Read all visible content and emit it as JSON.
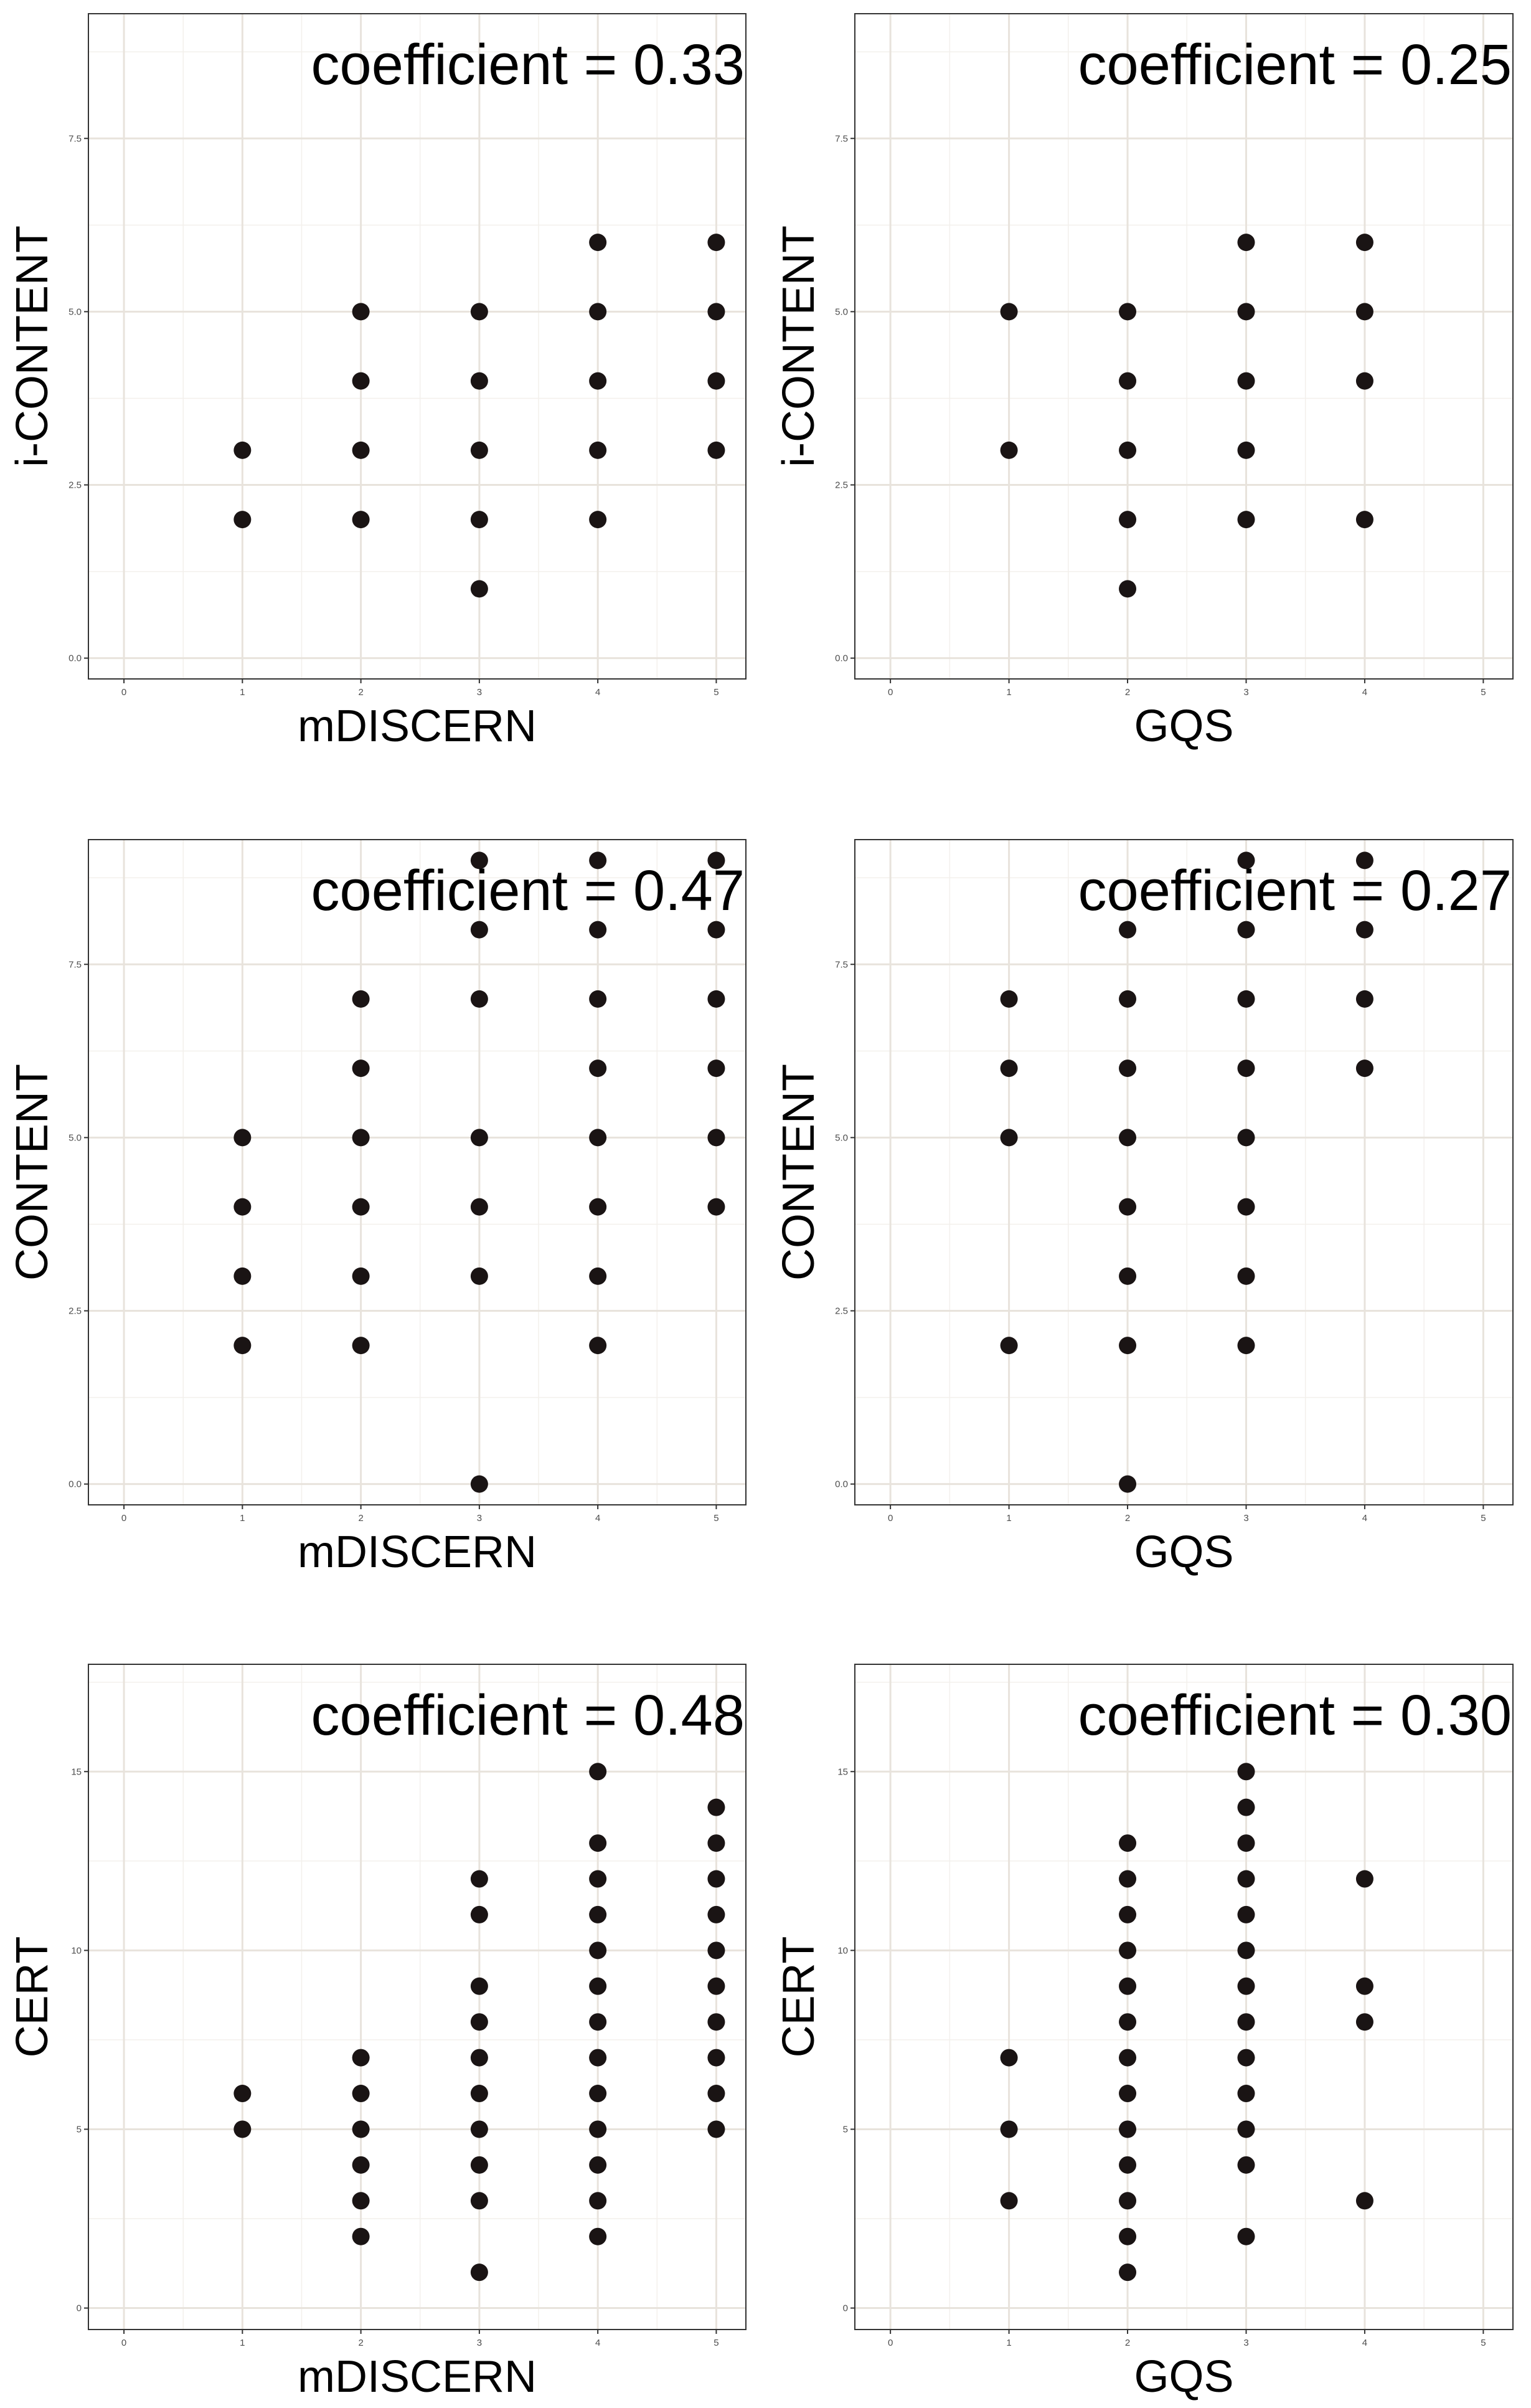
{
  "chart_data": [
    {
      "type": "scatter",
      "xlabel": "mDISCERN",
      "ylabel": "i-CONTENT",
      "annotation": "coefficient = 0.33",
      "xlim": [
        -0.3,
        5.25
      ],
      "ylim": [
        -0.3,
        9.3
      ],
      "x_ticks": [
        0,
        1,
        2,
        3,
        4,
        5
      ],
      "x_tick_labels": [
        "0",
        "1",
        "2",
        "3",
        "4",
        "5"
      ],
      "y_ticks": [
        0,
        2.5,
        5,
        7.5
      ],
      "y_tick_labels": [
        "0.0",
        "2.5",
        "5.0",
        "7.5"
      ],
      "minor_x": [
        0.5,
        1.5,
        2.5,
        3.5,
        4.5
      ],
      "minor_y": [
        1.25,
        3.75,
        6.25,
        8.75
      ],
      "points": [
        [
          1,
          2
        ],
        [
          1,
          3
        ],
        [
          2,
          2
        ],
        [
          2,
          3
        ],
        [
          2,
          4
        ],
        [
          2,
          5
        ],
        [
          3,
          1
        ],
        [
          3,
          2
        ],
        [
          3,
          3
        ],
        [
          3,
          4
        ],
        [
          3,
          5
        ],
        [
          4,
          2
        ],
        [
          4,
          3
        ],
        [
          4,
          4
        ],
        [
          4,
          5
        ],
        [
          4,
          6
        ],
        [
          5,
          3
        ],
        [
          5,
          4
        ],
        [
          5,
          5
        ],
        [
          5,
          6
        ]
      ]
    },
    {
      "type": "scatter",
      "xlabel": "GQS",
      "ylabel": "i-CONTENT",
      "annotation": "coefficient = 0.25",
      "xlim": [
        -0.3,
        5.25
      ],
      "ylim": [
        -0.3,
        9.3
      ],
      "x_ticks": [
        0,
        1,
        2,
        3,
        4,
        5
      ],
      "x_tick_labels": [
        "0",
        "1",
        "2",
        "3",
        "4",
        "5"
      ],
      "y_ticks": [
        0,
        2.5,
        5,
        7.5
      ],
      "y_tick_labels": [
        "0.0",
        "2.5",
        "5.0",
        "7.5"
      ],
      "minor_x": [
        0.5,
        1.5,
        2.5,
        3.5,
        4.5
      ],
      "minor_y": [
        1.25,
        3.75,
        6.25,
        8.75
      ],
      "points": [
        [
          1,
          3
        ],
        [
          1,
          5
        ],
        [
          2,
          1
        ],
        [
          2,
          2
        ],
        [
          2,
          3
        ],
        [
          2,
          4
        ],
        [
          2,
          5
        ],
        [
          3,
          2
        ],
        [
          3,
          3
        ],
        [
          3,
          4
        ],
        [
          3,
          5
        ],
        [
          3,
          6
        ],
        [
          4,
          2
        ],
        [
          4,
          4
        ],
        [
          4,
          5
        ],
        [
          4,
          6
        ]
      ]
    },
    {
      "type": "scatter",
      "xlabel": "mDISCERN",
      "ylabel": "CONTENT",
      "annotation": "coefficient = 0.47",
      "xlim": [
        -0.3,
        5.25
      ],
      "ylim": [
        -0.3,
        9.3
      ],
      "x_ticks": [
        0,
        1,
        2,
        3,
        4,
        5
      ],
      "x_tick_labels": [
        "0",
        "1",
        "2",
        "3",
        "4",
        "5"
      ],
      "y_ticks": [
        0,
        2.5,
        5,
        7.5
      ],
      "y_tick_labels": [
        "0.0",
        "2.5",
        "5.0",
        "7.5"
      ],
      "minor_x": [
        0.5,
        1.5,
        2.5,
        3.5,
        4.5
      ],
      "minor_y": [
        1.25,
        3.75,
        6.25,
        8.75
      ],
      "points": [
        [
          1,
          2
        ],
        [
          1,
          3
        ],
        [
          1,
          4
        ],
        [
          1,
          5
        ],
        [
          2,
          2
        ],
        [
          2,
          3
        ],
        [
          2,
          4
        ],
        [
          2,
          5
        ],
        [
          2,
          6
        ],
        [
          2,
          7
        ],
        [
          3,
          0
        ],
        [
          3,
          3
        ],
        [
          3,
          4
        ],
        [
          3,
          5
        ],
        [
          3,
          7
        ],
        [
          3,
          8
        ],
        [
          3,
          9
        ],
        [
          4,
          2
        ],
        [
          4,
          3
        ],
        [
          4,
          4
        ],
        [
          4,
          5
        ],
        [
          4,
          6
        ],
        [
          4,
          7
        ],
        [
          4,
          8
        ],
        [
          4,
          9
        ],
        [
          5,
          4
        ],
        [
          5,
          5
        ],
        [
          5,
          6
        ],
        [
          5,
          7
        ],
        [
          5,
          8
        ],
        [
          5,
          9
        ]
      ]
    },
    {
      "type": "scatter",
      "xlabel": "GQS",
      "ylabel": "CONTENT",
      "annotation": "coefficient = 0.27",
      "xlim": [
        -0.3,
        5.25
      ],
      "ylim": [
        -0.3,
        9.3
      ],
      "x_ticks": [
        0,
        1,
        2,
        3,
        4,
        5
      ],
      "x_tick_labels": [
        "0",
        "1",
        "2",
        "3",
        "4",
        "5"
      ],
      "y_ticks": [
        0,
        2.5,
        5,
        7.5
      ],
      "y_tick_labels": [
        "0.0",
        "2.5",
        "5.0",
        "7.5"
      ],
      "minor_x": [
        0.5,
        1.5,
        2.5,
        3.5,
        4.5
      ],
      "minor_y": [
        1.25,
        3.75,
        6.25,
        8.75
      ],
      "points": [
        [
          1,
          2
        ],
        [
          1,
          5
        ],
        [
          1,
          6
        ],
        [
          1,
          7
        ],
        [
          2,
          0
        ],
        [
          2,
          2
        ],
        [
          2,
          3
        ],
        [
          2,
          4
        ],
        [
          2,
          5
        ],
        [
          2,
          6
        ],
        [
          2,
          7
        ],
        [
          2,
          8
        ],
        [
          3,
          2
        ],
        [
          3,
          3
        ],
        [
          3,
          4
        ],
        [
          3,
          5
        ],
        [
          3,
          6
        ],
        [
          3,
          7
        ],
        [
          3,
          8
        ],
        [
          3,
          9
        ],
        [
          4,
          6
        ],
        [
          4,
          7
        ],
        [
          4,
          8
        ],
        [
          4,
          9
        ]
      ]
    },
    {
      "type": "scatter",
      "xlabel": "mDISCERN",
      "ylabel": "CERT",
      "annotation": "coefficient = 0.48",
      "xlim": [
        -0.3,
        5.25
      ],
      "ylim": [
        -0.6,
        18
      ],
      "x_ticks": [
        0,
        1,
        2,
        3,
        4,
        5
      ],
      "x_tick_labels": [
        "0",
        "1",
        "2",
        "3",
        "4",
        "5"
      ],
      "y_ticks": [
        0,
        5,
        10,
        15
      ],
      "y_tick_labels": [
        "0",
        "5",
        "10",
        "15"
      ],
      "minor_x": [
        0.5,
        1.5,
        2.5,
        3.5,
        4.5
      ],
      "minor_y": [
        2.5,
        7.5,
        12.5,
        17.5
      ],
      "points": [
        [
          1,
          5
        ],
        [
          1,
          6
        ],
        [
          2,
          2
        ],
        [
          2,
          3
        ],
        [
          2,
          4
        ],
        [
          2,
          5
        ],
        [
          2,
          6
        ],
        [
          2,
          7
        ],
        [
          3,
          1
        ],
        [
          3,
          3
        ],
        [
          3,
          4
        ],
        [
          3,
          5
        ],
        [
          3,
          6
        ],
        [
          3,
          7
        ],
        [
          3,
          8
        ],
        [
          3,
          9
        ],
        [
          3,
          11
        ],
        [
          3,
          12
        ],
        [
          4,
          2
        ],
        [
          4,
          3
        ],
        [
          4,
          4
        ],
        [
          4,
          5
        ],
        [
          4,
          6
        ],
        [
          4,
          7
        ],
        [
          4,
          8
        ],
        [
          4,
          9
        ],
        [
          4,
          10
        ],
        [
          4,
          11
        ],
        [
          4,
          12
        ],
        [
          4,
          13
        ],
        [
          4,
          15
        ],
        [
          5,
          5
        ],
        [
          5,
          6
        ],
        [
          5,
          7
        ],
        [
          5,
          8
        ],
        [
          5,
          9
        ],
        [
          5,
          10
        ],
        [
          5,
          11
        ],
        [
          5,
          12
        ],
        [
          5,
          13
        ],
        [
          5,
          14
        ]
      ]
    },
    {
      "type": "scatter",
      "xlabel": "GQS",
      "ylabel": "CERT",
      "annotation": "coefficient = 0.30",
      "xlim": [
        -0.3,
        5.25
      ],
      "ylim": [
        -0.6,
        18
      ],
      "x_ticks": [
        0,
        1,
        2,
        3,
        4,
        5
      ],
      "x_tick_labels": [
        "0",
        "1",
        "2",
        "3",
        "4",
        "5"
      ],
      "y_ticks": [
        0,
        5,
        10,
        15
      ],
      "y_tick_labels": [
        "0",
        "5",
        "10",
        "15"
      ],
      "minor_x": [
        0.5,
        1.5,
        2.5,
        3.5,
        4.5
      ],
      "minor_y": [
        2.5,
        7.5,
        12.5,
        17.5
      ],
      "points": [
        [
          1,
          3
        ],
        [
          1,
          5
        ],
        [
          1,
          7
        ],
        [
          2,
          1
        ],
        [
          2,
          2
        ],
        [
          2,
          3
        ],
        [
          2,
          4
        ],
        [
          2,
          5
        ],
        [
          2,
          6
        ],
        [
          2,
          7
        ],
        [
          2,
          8
        ],
        [
          2,
          9
        ],
        [
          2,
          10
        ],
        [
          2,
          11
        ],
        [
          2,
          12
        ],
        [
          2,
          13
        ],
        [
          3,
          2
        ],
        [
          3,
          4
        ],
        [
          3,
          5
        ],
        [
          3,
          6
        ],
        [
          3,
          7
        ],
        [
          3,
          8
        ],
        [
          3,
          9
        ],
        [
          3,
          10
        ],
        [
          3,
          11
        ],
        [
          3,
          12
        ],
        [
          3,
          13
        ],
        [
          3,
          14
        ],
        [
          3,
          15
        ],
        [
          4,
          3
        ],
        [
          4,
          8
        ],
        [
          4,
          9
        ],
        [
          4,
          12
        ]
      ]
    }
  ],
  "colors": {
    "point": "#1a1414",
    "grid_major": "#e8e3dc",
    "grid_minor": "#f3f0ec",
    "border": "#333333",
    "text": "#000000",
    "tick_text": "#4d4d4d"
  }
}
